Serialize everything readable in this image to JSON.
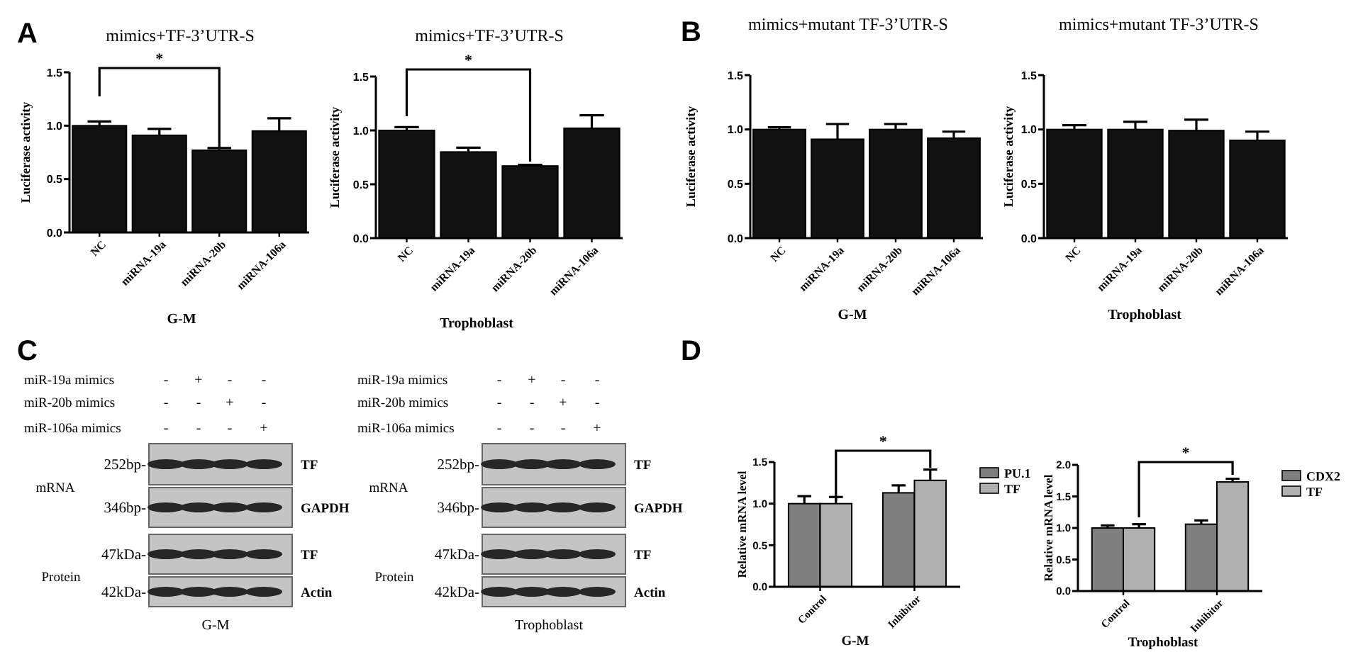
{
  "chart_data": [
    {
      "type": "bar",
      "title": "mimics+TF-3’UTR-S",
      "xlabel": "G-M",
      "ylabel": "Luciferase activity",
      "categories": [
        "NC",
        "miRNA-19a",
        "miRNA-20b",
        "miRNA-106a"
      ],
      "values": [
        1.0,
        0.91,
        0.77,
        0.95
      ],
      "errors": [
        [
          1.0,
          1.04
        ],
        [
          0.91,
          0.97
        ],
        [
          0.77,
          0.79
        ],
        [
          0.95,
          1.07
        ]
      ],
      "color": "#111111",
      "ylim": [
        0,
        1.5
      ],
      "yticks": [
        {
          "value": 0,
          "label": "0.0"
        },
        {
          "value": 0.5,
          "label": "0.5"
        },
        {
          "value": 1,
          "label": "1.0"
        },
        {
          "value": 1.5,
          "label": "1.5"
        }
      ],
      "annotations": [
        "A",
        "*"
      ]
    },
    {
      "type": "bar",
      "title": "mimics+TF-3’UTR-S",
      "xlabel": "Trophoblast",
      "ylabel": "Luciferase activity",
      "categories": [
        "NC",
        "miRNA-19a",
        "miRNA-20b",
        "miRNA-106a"
      ],
      "values": [
        1.0,
        0.8,
        0.67,
        1.02
      ],
      "errors": [
        [
          1.0,
          1.03
        ],
        [
          0.8,
          0.84
        ],
        [
          0.67,
          0.68
        ],
        [
          1.02,
          1.14
        ]
      ],
      "color": "#111111",
      "ylim": [
        0,
        1.5
      ],
      "yticks": [
        {
          "value": 0,
          "label": "0.0"
        },
        {
          "value": 0.5,
          "label": "0.5"
        },
        {
          "value": 1,
          "label": "1.0"
        },
        {
          "value": 1.5,
          "label": "1.5"
        }
      ],
      "annotations": [
        "*"
      ]
    },
    {
      "type": "bar",
      "title": "mimics+mutant TF-3’UTR-S",
      "xlabel": "G-M",
      "ylabel": "Luciferase activity",
      "categories": [
        "NC",
        "miRNA-19a",
        "miRNA-20b",
        "miRNA-106a"
      ],
      "values": [
        1.0,
        0.91,
        1.0,
        0.92
      ],
      "errors": [
        [
          1.0,
          1.02
        ],
        [
          0.91,
          1.05
        ],
        [
          1.0,
          1.05
        ],
        [
          0.92,
          0.98
        ]
      ],
      "color": "#111111",
      "ylim": [
        0,
        1.5
      ],
      "yticks": [
        {
          "value": 0,
          "label": "0.0"
        },
        {
          "value": 0.5,
          "label": "0.5"
        },
        {
          "value": 1,
          "label": "1.0"
        },
        {
          "value": 1.5,
          "label": "1.5"
        }
      ],
      "annotations": [
        "B"
      ]
    },
    {
      "type": "bar",
      "title": "mimics+mutant TF-3’UTR-S",
      "xlabel": "Trophoblast",
      "ylabel": "Luciferase activity",
      "categories": [
        "NC",
        "miRNA-19a",
        "miRNA-20b",
        "miRNA-106a"
      ],
      "values": [
        1.0,
        1.0,
        0.99,
        0.9
      ],
      "errors": [
        [
          1.0,
          1.04
        ],
        [
          1.0,
          1.07
        ],
        [
          0.99,
          1.09
        ],
        [
          0.9,
          0.98
        ]
      ],
      "color": "#111111",
      "ylim": [
        0,
        1.5
      ],
      "yticks": [
        {
          "value": 0,
          "label": "0.0"
        },
        {
          "value": 0.5,
          "label": "0.5"
        },
        {
          "value": 1,
          "label": "1.0"
        },
        {
          "value": 1.5,
          "label": "1.5"
        }
      ]
    },
    {
      "type": "other",
      "xlabel": "G-M",
      "annotations": [
        "C",
        "miR-19a mimics",
        "-",
        "+",
        "-",
        "-",
        "miR-20b mimics",
        "-",
        "-",
        "+",
        "-",
        "miR-106a mimics",
        "-",
        "-",
        "-",
        "+",
        "252bp-",
        "TF",
        "346bp-",
        "GAPDH",
        "47kDa-",
        "TF",
        "42kDa-",
        "Actin",
        "mRNA",
        "Protein"
      ]
    },
    {
      "type": "other",
      "xlabel": "Trophoblast",
      "annotations": [
        "miR-19a mimics",
        "-",
        "+",
        "-",
        "-",
        "miR-20b mimics",
        "-",
        "-",
        "+",
        "-",
        "miR-106a mimics",
        "-",
        "-",
        "-",
        "+",
        "252bp-",
        "TF",
        "346bp-",
        "GAPDH",
        "47kDa-",
        "TF",
        "42kDa-",
        "Actin",
        "mRNA",
        "Protein"
      ]
    },
    {
      "type": "bar",
      "xlabel": "G-M",
      "ylabel": "Relative mRNA level",
      "categories": [
        "Control",
        "Inhibitor"
      ],
      "series": [
        {
          "name": "PU.1",
          "color": "#7f7f7f",
          "values": [
            1.0,
            1.13
          ],
          "errors": [
            [
              1.0,
              1.09
            ],
            [
              1.13,
              1.22
            ]
          ]
        },
        {
          "name": "TF",
          "color": "#b0b0b0",
          "values": [
            1.0,
            1.28
          ],
          "errors": [
            [
              1.0,
              1.08
            ],
            [
              1.28,
              1.41
            ]
          ]
        }
      ],
      "ylim": [
        0,
        1.5
      ],
      "yticks": [
        {
          "value": 0,
          "label": "0.0"
        },
        {
          "value": 0.5,
          "label": "0.5"
        },
        {
          "value": 1,
          "label": "1.0"
        },
        {
          "value": 1.5,
          "label": "1.5"
        }
      ],
      "legend": "right",
      "annotations": [
        "D",
        "*"
      ]
    },
    {
      "type": "bar",
      "xlabel": "Trophoblast",
      "ylabel": "Relative mRNA level",
      "categories": [
        "Control",
        "Inhibitor"
      ],
      "series": [
        {
          "name": "CDX2",
          "color": "#7f7f7f",
          "values": [
            1.0,
            1.06
          ],
          "errors": [
            [
              1.0,
              1.04
            ],
            [
              1.06,
              1.12
            ]
          ]
        },
        {
          "name": "TF",
          "color": "#b0b0b0",
          "values": [
            1.0,
            1.73
          ],
          "errors": [
            [
              1.0,
              1.06
            ],
            [
              1.73,
              1.78
            ]
          ]
        }
      ],
      "ylim": [
        0,
        2
      ],
      "yticks": [
        {
          "value": 0,
          "label": "0.0"
        },
        {
          "value": 0.5,
          "label": "0.5"
        },
        {
          "value": 1,
          "label": "1.0"
        },
        {
          "value": 1.5,
          "label": "1.5"
        },
        {
          "value": 2,
          "label": "2.0"
        }
      ],
      "legend": "right",
      "annotations": [
        "*"
      ]
    }
  ]
}
